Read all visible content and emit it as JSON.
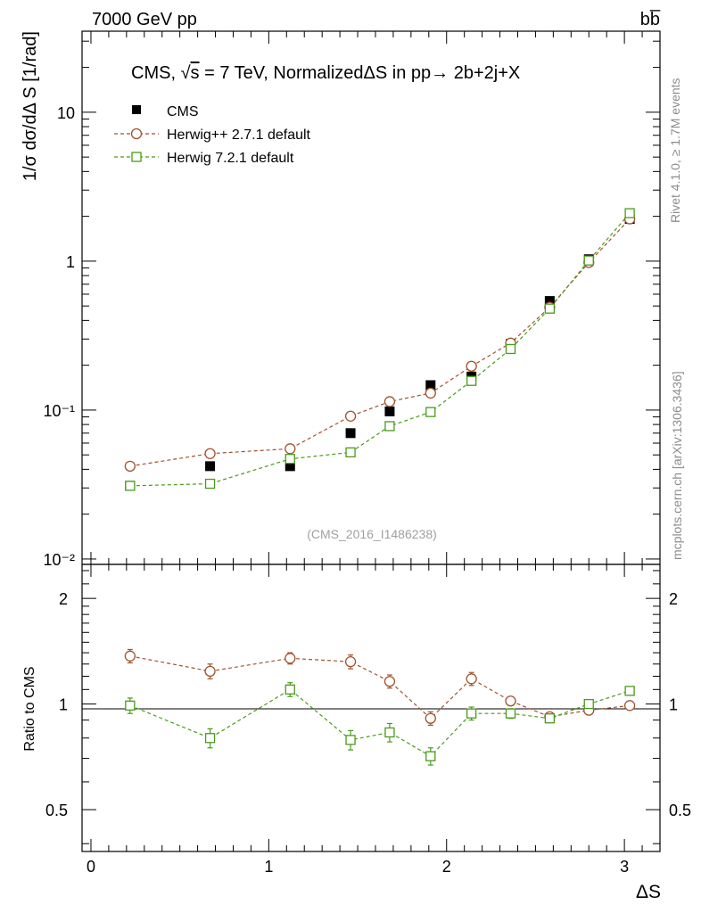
{
  "header": {
    "energy_label": "7000 GeV pp",
    "process_label": "bb̅"
  },
  "side_labels": {
    "rivet": "Rivet 4.1.0, ≥ 1.7M events",
    "mcplots": "mcplots.cern.ch [arXiv:1306.3436]"
  },
  "watermark": "(CMS_2016_I1486238)",
  "chart_data": {
    "type": "scatter",
    "title": "CMS, √s = 7 TeV, NormalizedΔS in pp→  2b+2j+X",
    "title_parts": {
      "pre": "CMS, ",
      "sqrt": "√",
      "s": "s",
      "post": " = 7 TeV, NormalizedΔS in pp→  2b+2j+X"
    },
    "xlabel": "ΔS",
    "ylabel": "1/σ dσ/dΔ S [1/rad]",
    "ratio_ylabel": "Ratio to CMS",
    "xlim": [
      -0.05,
      3.2
    ],
    "ylim": [
      0.0092,
      35
    ],
    "ratio_ylim": [
      0.38,
      2.5
    ],
    "yscale": "log",
    "x_ticks": [
      "0",
      "1",
      "2",
      "3"
    ],
    "y_ticks": [
      "10⁻²",
      "10⁻¹",
      "1",
      "10"
    ],
    "ratio_ticks": [
      "0.5",
      "1",
      "2"
    ],
    "ratio_ticks_right": [
      "0.5",
      "1",
      "2"
    ],
    "x": [
      0.22,
      0.67,
      1.12,
      1.46,
      1.68,
      1.91,
      2.14,
      2.36,
      2.58,
      2.8,
      3.03
    ],
    "legend": [
      "CMS",
      "Herwig++ 2.7.1 default",
      "Herwig 7.2.1 default"
    ],
    "series": [
      {
        "name": "CMS",
        "color": "#000000",
        "marker": "filled-square",
        "values": [
          0.031,
          0.042,
          0.042,
          0.07,
          0.098,
          0.147,
          0.168,
          0.278,
          0.54,
          1.03,
          1.92
        ]
      },
      {
        "name": "Herwig++ 2.7.1 default",
        "color": "#a0522d",
        "marker": "open-circle",
        "values": [
          0.042,
          0.051,
          0.055,
          0.091,
          0.114,
          0.13,
          0.197,
          0.282,
          0.49,
          0.98,
          1.92
        ],
        "ratio": [
          1.37,
          1.24,
          1.35,
          1.32,
          1.16,
          0.91,
          1.18,
          1.02,
          0.92,
          0.96,
          0.99
        ],
        "ratio_err": [
          0.06,
          0.06,
          0.05,
          0.06,
          0.05,
          0.04,
          0.05,
          0.03,
          0.02,
          0.02,
          0.02
        ]
      },
      {
        "name": "Herwig 7.2.1 default",
        "color": "#4a9a1a",
        "marker": "open-square",
        "values": [
          0.031,
          0.032,
          0.047,
          0.052,
          0.078,
          0.097,
          0.157,
          0.257,
          0.48,
          1.01,
          2.1
        ],
        "ratio": [
          0.99,
          0.8,
          1.1,
          0.79,
          0.83,
          0.71,
          0.94,
          0.94,
          0.91,
          1.0,
          1.09
        ],
        "ratio_err": [
          0.05,
          0.05,
          0.05,
          0.05,
          0.05,
          0.04,
          0.04,
          0.03,
          0.02,
          0.02,
          0.02
        ]
      }
    ]
  }
}
